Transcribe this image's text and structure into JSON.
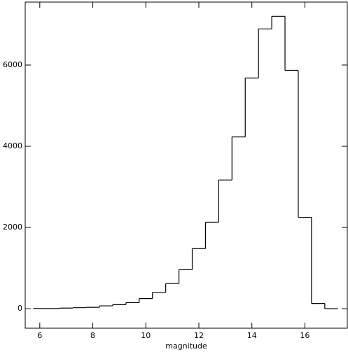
{
  "chart_data": {
    "type": "histogram",
    "xlabel": "magnitude",
    "bins": [
      5.75,
      6.25,
      6.75,
      7.25,
      7.75,
      8.25,
      8.75,
      9.25,
      9.75,
      10.25,
      10.75,
      11.25,
      11.75,
      12.25,
      12.75,
      13.25,
      13.75,
      14.25,
      14.75,
      15.25,
      15.75,
      16.25,
      16.75,
      17.25
    ],
    "values": [
      5,
      5,
      15,
      25,
      35,
      70,
      100,
      150,
      250,
      400,
      620,
      960,
      1480,
      2130,
      3170,
      4230,
      5680,
      6890,
      7200,
      5870,
      2250,
      130,
      0
    ],
    "color": "#000000",
    "xlim": [
      5.45,
      17.6
    ],
    "ylim": [
      -480,
      7550
    ],
    "xticks": [
      6,
      8,
      10,
      12,
      14,
      16
    ],
    "yticks": [
      0,
      2000,
      4000,
      6000
    ]
  }
}
